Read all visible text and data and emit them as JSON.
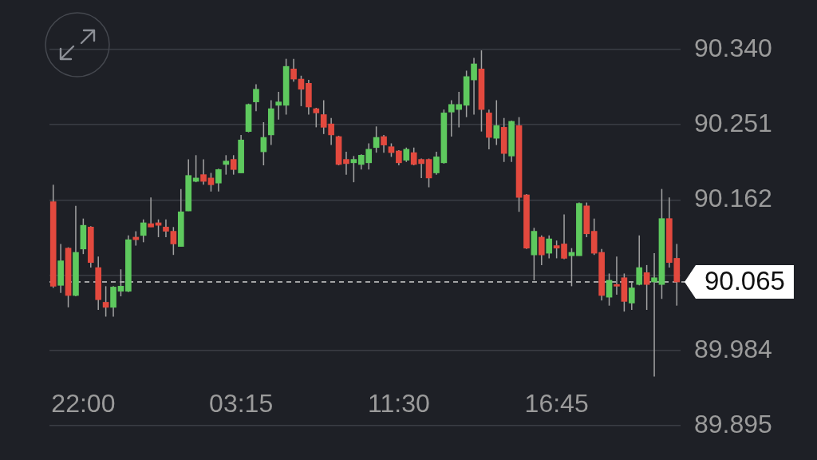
{
  "chart_data": {
    "type": "candlestick",
    "categories": [
      null,
      null,
      null,
      null,
      "22:00",
      null,
      null,
      null,
      null,
      null,
      null,
      null,
      null,
      null,
      null,
      null,
      null,
      null,
      null,
      null,
      null,
      null,
      null,
      null,
      null,
      "03:15",
      null,
      null,
      null,
      null,
      null,
      null,
      null,
      null,
      null,
      null,
      null,
      null,
      null,
      null,
      null,
      null,
      null,
      null,
      null,
      null,
      "11:30",
      null,
      null,
      null,
      null,
      null,
      null,
      null,
      null,
      null,
      null,
      null,
      null,
      null,
      null,
      null,
      null,
      null,
      null,
      null,
      null,
      "16:45",
      null,
      null,
      null,
      null,
      null,
      null,
      null,
      null,
      null,
      null,
      null,
      null,
      null,
      null,
      null,
      null
    ],
    "ohlc": [
      [
        90.16,
        90.18,
        90.058,
        90.06
      ],
      [
        90.061,
        90.11,
        90.052,
        90.09
      ],
      [
        90.105,
        90.106,
        90.035,
        90.049
      ],
      [
        90.049,
        90.155,
        90.048,
        90.1
      ],
      [
        90.104,
        90.14,
        90.098,
        90.132
      ],
      [
        90.13,
        90.131,
        90.082,
        90.088
      ],
      [
        90.082,
        90.095,
        90.032,
        90.044
      ],
      [
        90.041,
        90.06,
        90.024,
        90.035
      ],
      [
        90.035,
        90.06,
        90.024,
        90.059
      ],
      [
        90.054,
        90.08,
        90.048,
        90.06
      ],
      [
        90.054,
        90.12,
        90.053,
        90.115
      ],
      [
        90.118,
        90.125,
        90.108,
        90.115
      ],
      [
        90.12,
        90.139,
        90.112,
        90.135
      ],
      [
        90.134,
        90.165,
        90.13,
        90.13
      ],
      [
        90.135,
        90.139,
        90.118,
        90.132
      ],
      [
        90.13,
        90.139,
        90.118,
        90.125
      ],
      [
        90.125,
        90.13,
        90.097,
        90.11
      ],
      [
        90.107,
        90.175,
        90.107,
        90.148
      ],
      [
        90.149,
        90.21,
        90.149,
        90.191
      ],
      [
        90.184,
        90.215,
        90.183,
        90.188
      ],
      [
        90.192,
        90.21,
        90.18,
        90.184
      ],
      [
        90.188,
        90.194,
        90.172,
        90.18
      ],
      [
        90.182,
        90.199,
        90.172,
        90.198
      ],
      [
        90.204,
        90.215,
        90.192,
        90.208
      ],
      [
        90.21,
        90.215,
        90.192,
        90.198
      ],
      [
        90.194,
        90.239,
        90.194,
        90.233
      ],
      [
        90.243,
        90.276,
        90.242,
        90.275
      ],
      [
        90.278,
        90.299,
        90.267,
        90.293
      ],
      [
        90.219,
        90.254,
        90.203,
        90.236
      ],
      [
        90.239,
        90.28,
        90.227,
        90.27
      ],
      [
        90.274,
        90.29,
        90.257,
        90.278
      ],
      [
        90.274,
        90.329,
        90.263,
        90.32
      ],
      [
        90.317,
        90.329,
        90.302,
        90.305
      ],
      [
        90.305,
        90.309,
        90.273,
        90.293
      ],
      [
        90.3,
        90.304,
        90.263,
        90.272
      ],
      [
        90.27,
        90.271,
        90.248,
        90.265
      ],
      [
        90.263,
        90.28,
        90.24,
        90.248
      ],
      [
        90.252,
        90.259,
        90.227,
        90.239
      ],
      [
        90.237,
        90.238,
        90.203,
        90.204
      ],
      [
        90.21,
        90.219,
        90.192,
        90.205
      ],
      [
        90.206,
        90.214,
        90.183,
        90.21
      ],
      [
        90.204,
        90.216,
        90.198,
        90.215
      ],
      [
        90.206,
        90.229,
        90.198,
        90.222
      ],
      [
        90.224,
        90.249,
        90.218,
        90.236
      ],
      [
        90.237,
        90.239,
        90.218,
        90.227
      ],
      [
        90.225,
        90.229,
        90.213,
        90.218
      ],
      [
        90.22,
        90.221,
        90.203,
        90.206
      ],
      [
        90.209,
        90.224,
        90.207,
        90.222
      ],
      [
        90.218,
        90.224,
        90.203,
        90.204
      ],
      [
        90.21,
        90.211,
        90.188,
        90.205
      ],
      [
        90.21,
        90.211,
        90.177,
        90.188
      ],
      [
        90.194,
        90.219,
        90.192,
        90.213
      ],
      [
        90.206,
        90.269,
        90.205,
        90.265
      ],
      [
        90.266,
        90.28,
        90.237,
        90.275
      ],
      [
        90.269,
        90.29,
        90.248,
        90.275
      ],
      [
        90.274,
        90.315,
        90.26,
        90.308
      ],
      [
        90.304,
        90.33,
        90.263,
        90.323
      ],
      [
        90.317,
        90.339,
        90.243,
        90.269
      ],
      [
        90.265,
        90.269,
        90.222,
        90.236
      ],
      [
        90.235,
        90.28,
        90.227,
        90.25
      ],
      [
        90.248,
        90.259,
        90.207,
        90.217
      ],
      [
        90.214,
        90.256,
        90.207,
        90.255
      ],
      [
        90.25,
        90.26,
        90.148,
        90.165
      ],
      [
        90.168,
        90.169,
        90.104,
        90.105
      ],
      [
        90.097,
        90.129,
        90.067,
        90.125
      ],
      [
        90.118,
        90.12,
        90.085,
        90.097
      ],
      [
        90.099,
        90.12,
        90.093,
        90.116
      ],
      [
        90.108,
        90.114,
        90.093,
        90.105
      ],
      [
        90.11,
        90.145,
        90.092,
        90.093
      ],
      [
        90.096,
        90.105,
        90.06,
        90.1
      ],
      [
        90.096,
        90.159,
        90.096,
        90.158
      ],
      [
        90.155,
        90.159,
        90.118,
        90.122
      ],
      [
        90.125,
        90.14,
        90.097,
        90.099
      ],
      [
        90.1,
        90.104,
        90.043,
        90.049
      ],
      [
        90.047,
        90.075,
        90.037,
        90.067
      ],
      [
        90.062,
        90.095,
        90.05,
        90.06
      ],
      [
        90.07,
        90.075,
        90.03,
        90.042
      ],
      [
        90.04,
        90.066,
        90.032,
        90.058
      ],
      [
        90.062,
        90.12,
        90.061,
        90.082
      ],
      [
        90.076,
        90.085,
        90.032,
        90.062
      ],
      [
        90.065,
        90.099,
        89.953,
        90.07
      ],
      [
        90.062,
        90.175,
        90.045,
        90.14
      ],
      [
        90.14,
        90.165,
        90.082,
        90.088
      ],
      [
        90.093,
        90.11,
        90.037,
        90.065
      ]
    ],
    "colors": [
      "#e3493e",
      "#5ec95e",
      "#e3493e",
      "#5ec95e",
      "#5ec95e",
      "#e3493e",
      "#e3493e",
      "#e3493e",
      "#5ec95e",
      "#5ec95e",
      "#5ec95e",
      "#e3493e",
      "#5ec95e",
      "#e3493e",
      "#e3493e",
      "#e3493e",
      "#e3493e",
      "#5ec95e",
      "#5ec95e",
      "#5ec95e",
      "#e3493e",
      "#e3493e",
      "#5ec95e",
      "#5ec95e",
      "#e3493e",
      "#5ec95e",
      "#5ec95e",
      "#5ec95e",
      "#5ec95e",
      "#5ec95e",
      "#5ec95e",
      "#5ec95e",
      "#e3493e",
      "#e3493e",
      "#e3493e",
      "#e3493e",
      "#e3493e",
      "#e3493e",
      "#e3493e",
      "#e3493e",
      "#5ec95e",
      "#5ec95e",
      "#5ec95e",
      "#5ec95e",
      "#e3493e",
      "#e3493e",
      "#e3493e",
      "#5ec95e",
      "#e3493e",
      "#e3493e",
      "#e3493e",
      "#5ec95e",
      "#5ec95e",
      "#5ec95e",
      "#5ec95e",
      "#5ec95e",
      "#5ec95e",
      "#e3493e",
      "#e3493e",
      "#5ec95e",
      "#e3493e",
      "#5ec95e",
      "#e3493e",
      "#e3493e",
      "#5ec95e",
      "#e3493e",
      "#5ec95e",
      "#e3493e",
      "#e3493e",
      "#5ec95e",
      "#5ec95e",
      "#e3493e",
      "#e3493e",
      "#e3493e",
      "#5ec95e",
      "#e3493e",
      "#e3493e",
      "#5ec95e",
      "#5ec95e",
      "#e3493e",
      "#5ec95e",
      "#5ec95e",
      "#e3493e",
      "#e3493e"
    ],
    "ylim": [
      89.895,
      90.34
    ],
    "yticks": [
      {
        "value": 90.34,
        "label": "90.340"
      },
      90.251,
      90.162,
      {
        "value": 90.073,
        "label": null
      },
      89.984,
      89.895
    ],
    "grid": "y",
    "ref_lines": [
      {
        "axis": "y",
        "value": 90.065,
        "label": "90.065",
        "line_style": "dashed",
        "color": "#d0d0d0"
      }
    ]
  }
}
